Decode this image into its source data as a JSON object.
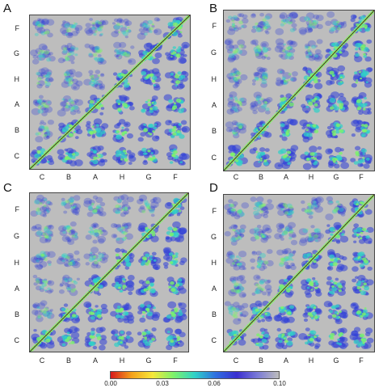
{
  "chart_data": [
    {
      "type": "heatmap",
      "panel_label": "A",
      "y_tick_labels": [
        "F",
        "G",
        "H",
        "A",
        "B",
        "C"
      ],
      "x_tick_labels": [
        "C",
        "B",
        "A",
        "H",
        "G",
        "F"
      ],
      "diagonal": "identity"
    },
    {
      "type": "heatmap",
      "panel_label": "B",
      "y_tick_labels": [
        "F",
        "G",
        "H",
        "A",
        "B",
        "C"
      ],
      "x_tick_labels": [
        "C",
        "B",
        "A",
        "H",
        "G",
        "F"
      ],
      "diagonal": "identity"
    },
    {
      "type": "heatmap",
      "panel_label": "C",
      "y_tick_labels": [
        "F",
        "G",
        "H",
        "A",
        "B",
        "C"
      ],
      "x_tick_labels": [
        "C",
        "B",
        "A",
        "H",
        "G",
        "F"
      ],
      "diagonal": "identity"
    },
    {
      "type": "heatmap",
      "panel_label": "D",
      "y_tick_labels": [
        "F",
        "G",
        "H",
        "A",
        "B",
        "C"
      ],
      "x_tick_labels": [
        "C",
        "B",
        "A",
        "H",
        "G",
        "F"
      ],
      "diagonal": "identity"
    }
  ],
  "colorbar": {
    "tick_labels": [
      "0.00",
      "0.03",
      "0.06",
      "0.10"
    ],
    "range": [
      0.0,
      0.1
    ],
    "colors": [
      "#d7191c",
      "#f4a11a",
      "#f6e83a",
      "#7cf26b",
      "#2fd2c8",
      "#2f6fe0",
      "#3a2fd0",
      "#7b7bd6",
      "#bdbdbd"
    ]
  },
  "colors": {
    "background": "#bdbdbd",
    "low": "#d7191c",
    "mid_low": "#f6e83a",
    "mid": "#7cf26b",
    "mid_high": "#2fd2c8",
    "high": "#2f3fd8"
  }
}
